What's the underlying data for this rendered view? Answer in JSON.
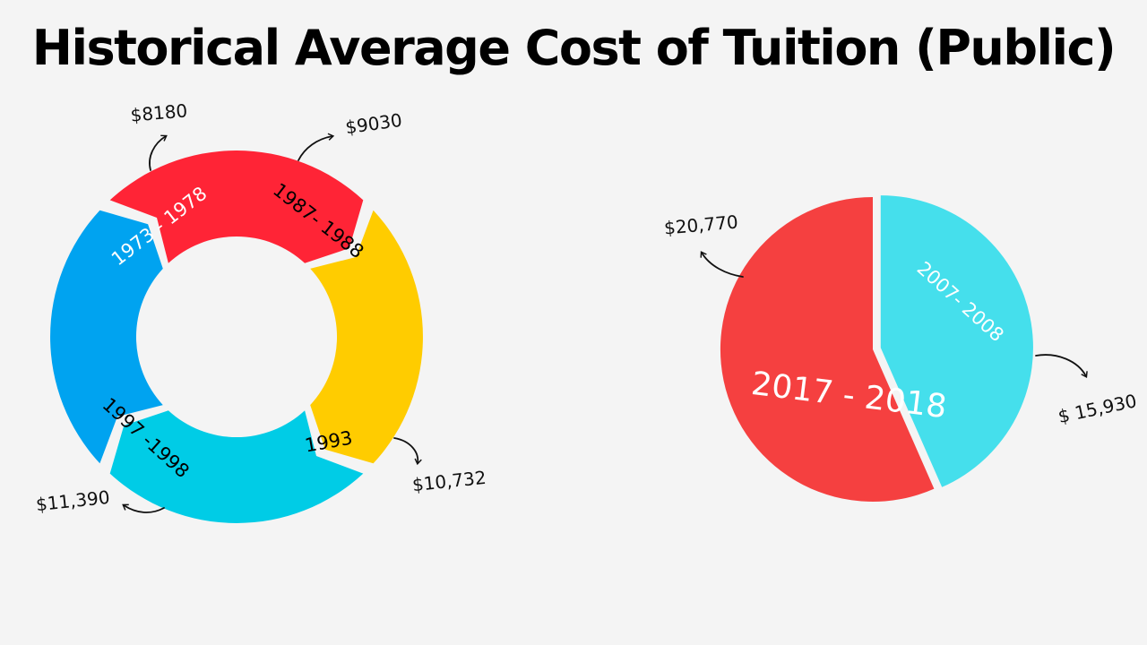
{
  "title": "Historical Average Cost of Tuition (Public)",
  "chart_data": [
    {
      "type": "pie",
      "style": "segmented-ring",
      "categories": [
        "1973 - 1978",
        "1987- 1988",
        "1993",
        "1997 -1998"
      ],
      "values": [
        8180,
        9030,
        10732,
        11390
      ],
      "value_labels": [
        "$8180",
        "$9030",
        "$10,732",
        "$11,390"
      ],
      "colors": [
        "#ff2436",
        "#ffcc00",
        "#00cce6",
        "#00a3f0"
      ],
      "label_colors": [
        "#ffffff",
        "#000000",
        "#000000",
        "#000000"
      ]
    },
    {
      "type": "pie",
      "categories": [
        "2007- 2008",
        "2017 - 2018"
      ],
      "values": [
        15930,
        20770
      ],
      "value_labels": [
        "$ 15,930",
        "$20,770"
      ],
      "colors": [
        "#45dfec",
        "#f54040"
      ],
      "label_colors": [
        "#ffffff",
        "#ffffff"
      ]
    }
  ]
}
